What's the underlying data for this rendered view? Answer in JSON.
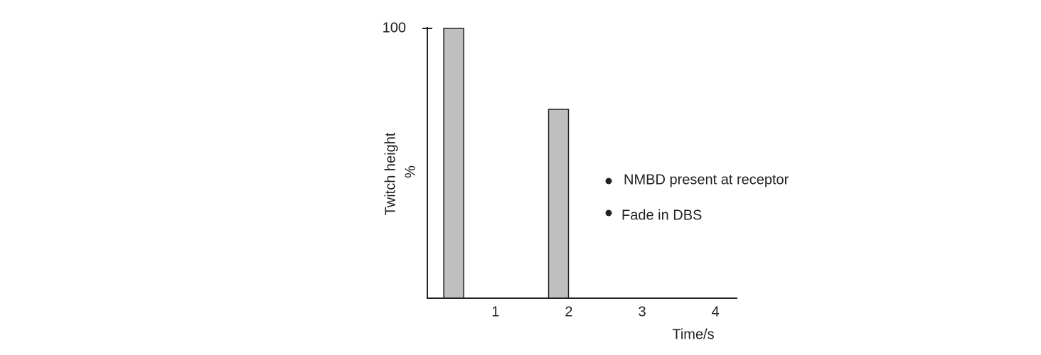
{
  "chart_data": {
    "type": "bar",
    "x": [
      0.43,
      1.86
    ],
    "values": [
      100,
      70
    ],
    "color": "#bfbfbf",
    "xlim": [
      0.07,
      4.3
    ],
    "xticks": [
      1,
      2,
      3,
      4
    ],
    "ylim": [
      0,
      100
    ],
    "yticks": [
      100
    ],
    "x_label": "Time/s",
    "y_label": [
      "Twitch height",
      "%"
    ],
    "annotations": [
      "NMBD present at receptor",
      "Fade in DBS"
    ]
  }
}
